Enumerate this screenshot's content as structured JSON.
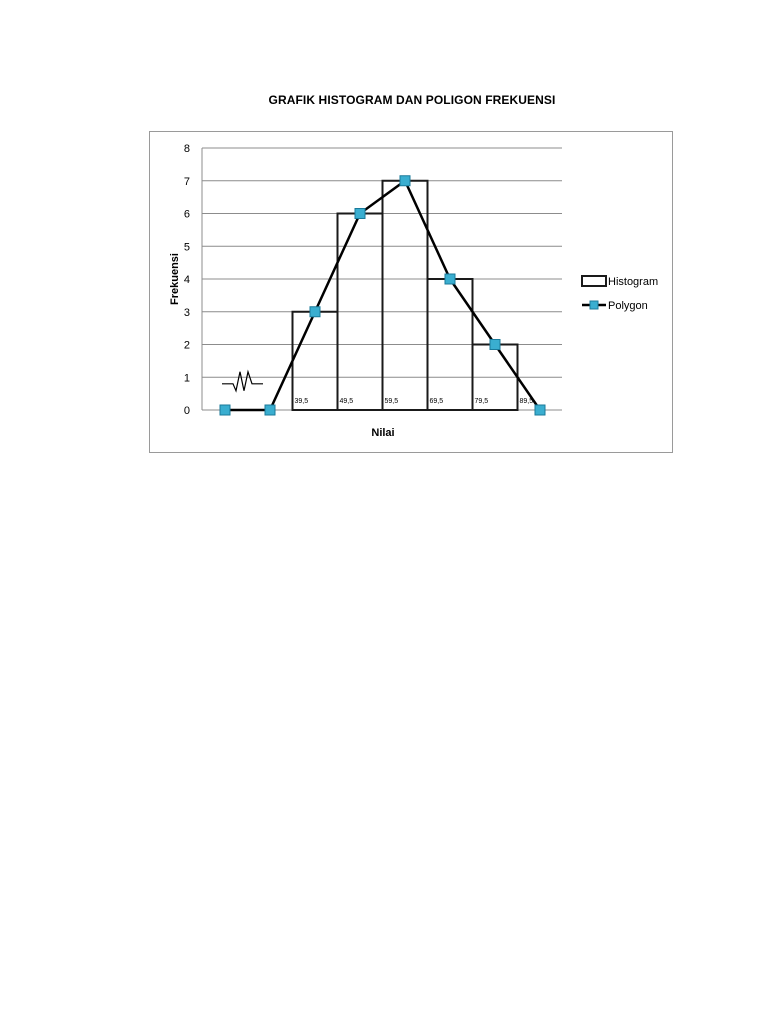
{
  "chart_data": {
    "type": "bar",
    "title": "GRAFIK HISTOGRAM DAN POLIGON FREKUENSI",
    "xlabel": "Nilai",
    "ylabel": "Frekuensi",
    "ylim": [
      0,
      8
    ],
    "yticks": [
      "0",
      "1",
      "2",
      "3",
      "4",
      "5",
      "6",
      "7",
      "8"
    ],
    "grid": true,
    "legend_position": "right",
    "histogram": {
      "name": "Histogram",
      "boundaries": [
        39.5,
        49.5,
        59.5,
        69.5,
        79.5,
        89.5
      ],
      "boundary_labels": [
        "39,5",
        "49,5",
        "59,5",
        "69,5",
        "79,5",
        "89,5"
      ],
      "values": [
        3,
        6,
        7,
        4,
        2
      ]
    },
    "polygon": {
      "name": "Polygon",
      "x": [
        24.5,
        34.5,
        44.5,
        54.5,
        64.5,
        74.5,
        84.5,
        94.5
      ],
      "y": [
        0,
        0,
        3,
        6,
        7,
        4,
        2,
        0
      ]
    },
    "axis_break": true,
    "colors": {
      "marker_fill": "#3aaed0",
      "marker_edge": "#1a7a9a",
      "line": "#000000",
      "bar_edge": "#1a1a1a",
      "grid": "#8c8c8c"
    }
  }
}
